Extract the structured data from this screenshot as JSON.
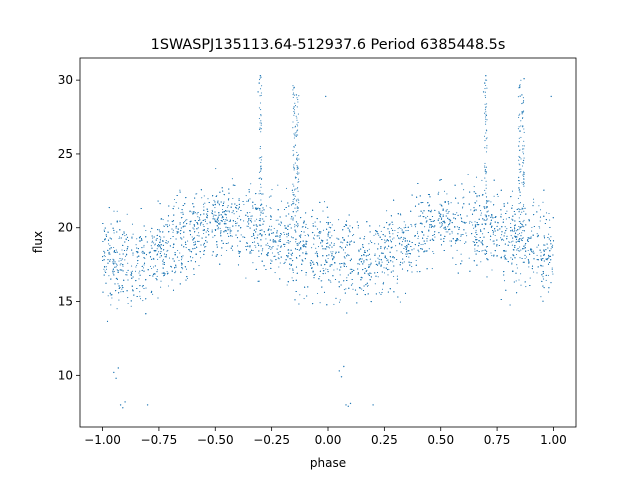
{
  "chart_data": {
    "type": "scatter",
    "title": "1SWASPJ135113.64-512937.6 Period 6385448.5s",
    "xlabel": "phase",
    "ylabel": "flux",
    "xlim": [
      -1.1,
      1.1
    ],
    "ylim": [
      6.5,
      31.5
    ],
    "xticks": [
      -1.0,
      -0.75,
      -0.5,
      -0.25,
      0.0,
      0.25,
      0.5,
      0.75,
      1.0
    ],
    "xtick_labels": [
      "−1.00",
      "−0.75",
      "−0.50",
      "−0.25",
      "0.00",
      "0.25",
      "0.50",
      "0.75",
      "1.00"
    ],
    "yticks": [
      10,
      15,
      20,
      25,
      30
    ],
    "ytick_labels": [
      "10",
      "15",
      "20",
      "25",
      "30"
    ],
    "grid": false,
    "legend": "none",
    "marker_color": "#1f77b4",
    "marker_size_note": "tiny dots",
    "period_symmetric": true,
    "phase_range": [
      -1.0,
      1.0
    ],
    "envelope": {
      "phase": [
        0.0,
        0.05,
        0.1,
        0.15,
        0.2,
        0.25,
        0.3,
        0.35,
        0.4,
        0.45,
        0.5,
        0.55,
        0.6,
        0.65,
        0.7,
        0.75,
        0.8,
        0.85,
        0.9,
        0.95,
        1.0
      ],
      "median": [
        18.2,
        18.0,
        17.8,
        17.6,
        17.9,
        18.3,
        18.6,
        19.4,
        19.6,
        20.2,
        20.5,
        20.3,
        20.1,
        20.2,
        19.9,
        19.6,
        19.3,
        19.0,
        18.7,
        18.3,
        18.2
      ],
      "lower": [
        13.5,
        13.0,
        13.5,
        14.0,
        14.5,
        14.8,
        15.0,
        15.5,
        16.0,
        16.5,
        16.5,
        16.0,
        15.5,
        15.5,
        15.0,
        15.0,
        14.5,
        14.0,
        13.5,
        13.5,
        13.5
      ],
      "upper": [
        24.0,
        24.5,
        24.0,
        23.5,
        24.0,
        24.5,
        25.0,
        25.5,
        25.5,
        25.0,
        24.5,
        25.0,
        26.0,
        26.5,
        26.0,
        25.5,
        25.0,
        25.0,
        24.5,
        24.0,
        24.0
      ]
    },
    "outlier_points": [
      {
        "x": -0.95,
        "y": 10.2
      },
      {
        "x": -0.94,
        "y": 9.8
      },
      {
        "x": -0.93,
        "y": 10.5
      },
      {
        "x": -0.92,
        "y": 8.0
      },
      {
        "x": -0.91,
        "y": 7.8
      },
      {
        "x": -0.9,
        "y": 8.2
      },
      {
        "x": -0.8,
        "y": 8.0
      },
      {
        "x": 0.05,
        "y": 10.3
      },
      {
        "x": 0.06,
        "y": 9.9
      },
      {
        "x": 0.07,
        "y": 10.6
      },
      {
        "x": 0.08,
        "y": 8.0
      },
      {
        "x": 0.09,
        "y": 7.9
      },
      {
        "x": 0.1,
        "y": 8.1
      },
      {
        "x": 0.2,
        "y": 8.0
      },
      {
        "x": -0.3,
        "y": 30.3
      },
      {
        "x": -0.305,
        "y": 29.8
      },
      {
        "x": -0.31,
        "y": 29.2
      },
      {
        "x": -0.15,
        "y": 29.5
      },
      {
        "x": -0.14,
        "y": 29.0
      },
      {
        "x": 0.7,
        "y": 30.3
      },
      {
        "x": 0.695,
        "y": 29.8
      },
      {
        "x": 0.69,
        "y": 29.2
      },
      {
        "x": 0.85,
        "y": 29.5
      },
      {
        "x": 0.86,
        "y": 29.0
      },
      {
        "x": 0.87,
        "y": 30.1
      },
      {
        "x": 0.99,
        "y": 28.9
      },
      {
        "x": -0.01,
        "y": 28.9
      }
    ],
    "spike_columns": [
      {
        "x": -0.3,
        "top": 30.3
      },
      {
        "x": -0.15,
        "top": 30.0
      },
      {
        "x": -0.135,
        "top": 29.0
      },
      {
        "x": 0.7,
        "top": 30.3
      },
      {
        "x": 0.85,
        "top": 30.0
      },
      {
        "x": 0.865,
        "top": 29.0
      }
    ],
    "gaps": [
      -0.88,
      -0.8,
      -0.7,
      -0.62,
      -0.52,
      -0.38,
      -0.2,
      -0.08,
      0.12,
      0.2,
      0.3,
      0.38,
      0.48,
      0.62,
      0.8,
      0.92
    ]
  }
}
